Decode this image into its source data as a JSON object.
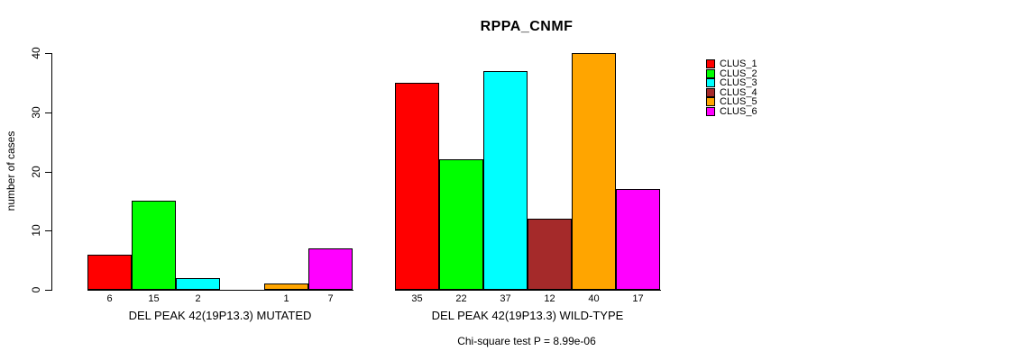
{
  "chart_data": {
    "type": "bar",
    "title": "RPPA_CNMF",
    "ylabel": "number of cases",
    "xlabel": "",
    "ylim": [
      0,
      40
    ],
    "yticks": [
      0,
      10,
      20,
      30,
      40
    ],
    "grid": false,
    "legend_position": "right",
    "series": [
      {
        "name": "CLUS_1",
        "color": "#FF0000"
      },
      {
        "name": "CLUS_2",
        "color": "#00FF00"
      },
      {
        "name": "CLUS_3",
        "color": "#00FFFF"
      },
      {
        "name": "CLUS_4",
        "color": "#A52A2A"
      },
      {
        "name": "CLUS_5",
        "color": "#FFA500"
      },
      {
        "name": "CLUS_6",
        "color": "#FF00FF"
      }
    ],
    "groups": [
      {
        "label": "DEL PEAK 42(19P13.3) MUTATED",
        "values": [
          6,
          15,
          2,
          0,
          1,
          7
        ],
        "bar_labels": [
          "6",
          "15",
          "2",
          "",
          "1",
          "7"
        ]
      },
      {
        "label": "DEL PEAK 42(19P13.3) WILD-TYPE",
        "values": [
          35,
          22,
          37,
          12,
          40,
          17
        ],
        "bar_labels": [
          "35",
          "22",
          "37",
          "12",
          "40",
          "17"
        ]
      }
    ],
    "annotation": "Chi-square test P = 8.99e-06"
  }
}
